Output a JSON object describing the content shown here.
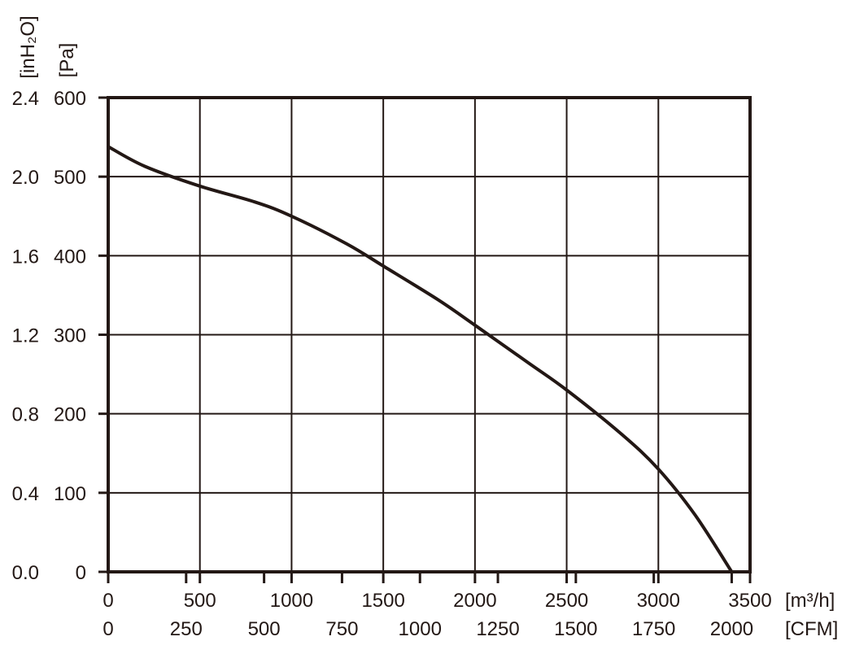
{
  "chart_data": {
    "type": "line",
    "x_unit_primary": "[m³/h]",
    "x_unit_secondary": "[CFM]",
    "y_unit_primary": "[Pa]",
    "y_unit_secondary": "[inH₂O]",
    "xlim": [
      0,
      3500
    ],
    "ylim": [
      0,
      600
    ],
    "grid": true,
    "x_ticks": [
      0,
      500,
      1000,
      1500,
      2000,
      2500,
      3000,
      3500
    ],
    "x_tick_labels": [
      "0",
      "500",
      "1000",
      "1500",
      "2000",
      "2500",
      "3000",
      "3500"
    ],
    "x2_tick_labels": [
      "0",
      "250",
      "500",
      "750",
      "1000",
      "1250",
      "1500",
      "1750",
      "2000"
    ],
    "x2_ticks_m3h": [
      0,
      425,
      850,
      1275,
      1700,
      2125,
      2550,
      2975,
      3400
    ],
    "y_ticks": [
      0,
      100,
      200,
      300,
      400,
      500,
      600
    ],
    "y_tick_labels": [
      "0",
      "100",
      "200",
      "300",
      "400",
      "500",
      "600"
    ],
    "y2_tick_labels": [
      "0.0",
      "0.4",
      "0.8",
      "1.2",
      "1.6",
      "2.0",
      "2.4"
    ],
    "series": [
      {
        "x": [
          0,
          200,
          500,
          800,
          1000,
          1300,
          1500,
          1800,
          2000,
          2300,
          2500,
          2800,
          3000,
          3200,
          3400
        ],
        "y": [
          538,
          513,
          488,
          468,
          450,
          415,
          387,
          344,
          312,
          263,
          230,
          174,
          130,
          72,
          0
        ]
      }
    ]
  }
}
